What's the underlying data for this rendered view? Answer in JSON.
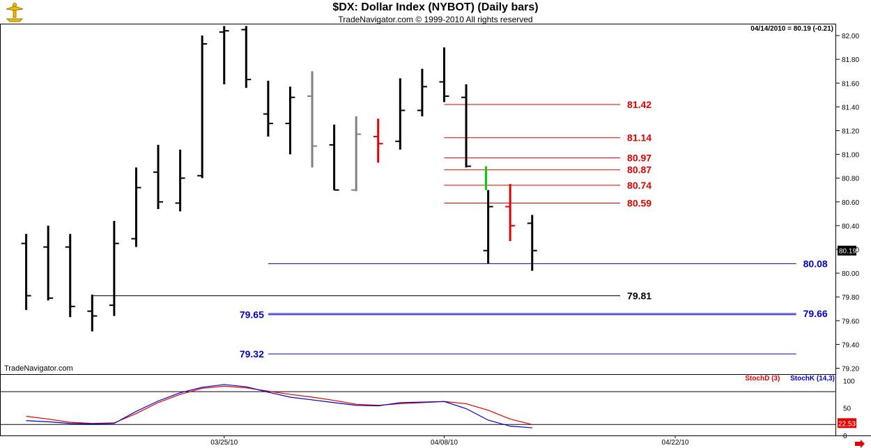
{
  "header": {
    "title": "$DX:  Dollar Index (NYBOT)  (Daily bars)",
    "subtitle": "TradeNavigator.com © 1999-2010 All rights reserved",
    "last_info": "04/14/2010 = 80.19 (-0.21)"
  },
  "watermark": "TradeNavigator.com",
  "colors": {
    "up_bar": "#000000",
    "down_bar": "#000000",
    "gray_bar": "#808080",
    "red_bar": "#e00000",
    "green_bar": "#00cc00",
    "red_level": "#e00000",
    "blue_level": "#0000cc",
    "black_level": "#000000"
  },
  "chart_data": [
    {
      "type": "ohlc",
      "title": "$DX:  Dollar Index (NYBOT)  (Daily bars)",
      "y_range": [
        79.15,
        82.1
      ],
      "y_ticks": [
        "82.00",
        "81.80",
        "81.60",
        "81.40",
        "81.20",
        "81.00",
        "80.80",
        "80.60",
        "80.40",
        "80.20",
        "80.00",
        "79.80",
        "79.60",
        "79.40",
        "79.20"
      ],
      "x_ticks": [
        "03/25/10",
        "04/08/10",
        "04/22/10"
      ],
      "x_tick_index": [
        9,
        19,
        29.5
      ],
      "x_index_range": [
        -1,
        36.5
      ],
      "current_price_label": "80.19",
      "bars": [
        {
          "d": 0,
          "o": 80.25,
          "h": 80.33,
          "l": 79.69,
          "c": 79.81,
          "color": "black"
        },
        {
          "d": 1,
          "o": 80.22,
          "h": 80.4,
          "l": 79.77,
          "c": 79.79,
          "color": "black"
        },
        {
          "d": 2,
          "o": 80.22,
          "h": 80.33,
          "l": 79.63,
          "c": 79.72,
          "color": "black"
        },
        {
          "d": 3,
          "o": 79.68,
          "h": 79.82,
          "l": 79.51,
          "c": 79.64,
          "color": "black"
        },
        {
          "d": 4,
          "o": 79.73,
          "h": 80.44,
          "l": 79.64,
          "c": 80.25,
          "color": "black"
        },
        {
          "d": 5,
          "o": 80.29,
          "h": 80.89,
          "l": 80.22,
          "c": 80.72,
          "color": "black"
        },
        {
          "d": 6,
          "o": 80.85,
          "h": 81.08,
          "l": 80.54,
          "c": 80.6,
          "color": "black"
        },
        {
          "d": 7,
          "o": 80.59,
          "h": 81.04,
          "l": 80.52,
          "c": 80.8,
          "color": "black"
        },
        {
          "d": 8,
          "o": 80.82,
          "h": 82.0,
          "l": 80.8,
          "c": 81.93,
          "color": "black"
        },
        {
          "d": 9,
          "o": 82.03,
          "h": 82.08,
          "l": 81.59,
          "c": 82.04,
          "color": "black"
        },
        {
          "d": 10,
          "o": 82.05,
          "h": 82.08,
          "l": 81.56,
          "c": 81.63,
          "color": "black"
        },
        {
          "d": 11,
          "o": 81.34,
          "h": 81.62,
          "l": 81.15,
          "c": 81.26,
          "color": "black"
        },
        {
          "d": 12,
          "o": 81.26,
          "h": 81.57,
          "l": 81.0,
          "c": 81.48,
          "color": "black"
        },
        {
          "d": 13,
          "o": 81.49,
          "h": 81.7,
          "l": 80.89,
          "c": 81.07,
          "color": "gray"
        },
        {
          "d": 14,
          "o": 81.08,
          "h": 81.25,
          "l": 80.7,
          "c": 80.7,
          "color": "black"
        },
        {
          "d": 15,
          "o": 80.7,
          "h": 81.32,
          "l": 80.69,
          "c": 81.17,
          "color": "gray"
        },
        {
          "d": 16,
          "o": 81.15,
          "h": 81.3,
          "l": 80.93,
          "c": 81.09,
          "color": "red"
        },
        {
          "d": 17,
          "o": 81.11,
          "h": 81.64,
          "l": 81.04,
          "c": 81.37,
          "color": "black"
        },
        {
          "d": 18,
          "o": 81.37,
          "h": 81.72,
          "l": 81.32,
          "c": 81.57,
          "color": "black"
        },
        {
          "d": 19,
          "o": 81.61,
          "h": 81.9,
          "l": 81.44,
          "c": 81.49,
          "color": "black"
        },
        {
          "d": 20,
          "o": 81.48,
          "h": 81.59,
          "l": 80.89,
          "c": 80.9,
          "color": "black"
        },
        {
          "d": 20.9,
          "o": 80.9,
          "h": 80.9,
          "l": 80.7,
          "c": 80.7,
          "color": "green"
        },
        {
          "d": 21,
          "o": 80.19,
          "h": 80.7,
          "l": 80.08,
          "c": 80.56,
          "color": "black"
        },
        {
          "d": 22,
          "o": 80.56,
          "h": 80.75,
          "l": 80.27,
          "c": 80.4,
          "color": "red"
        },
        {
          "d": 23,
          "o": 80.42,
          "h": 80.49,
          "l": 80.02,
          "c": 80.19,
          "color": "black"
        }
      ],
      "levels": [
        {
          "value": 81.42,
          "label": "81.42",
          "color": "red",
          "from": 19,
          "to": 27,
          "label_side": "right-mid"
        },
        {
          "value": 81.14,
          "label": "81.14",
          "color": "red",
          "from": 19,
          "to": 27,
          "label_side": "right-mid"
        },
        {
          "value": 80.97,
          "label": "80.97",
          "color": "red",
          "from": 19,
          "to": 27,
          "label_side": "right-mid"
        },
        {
          "value": 80.87,
          "label": "80.87",
          "color": "red",
          "from": 19,
          "to": 27,
          "label_side": "right-mid"
        },
        {
          "value": 80.74,
          "label": "80.74",
          "color": "red",
          "from": 19,
          "to": 27,
          "label_side": "right-mid"
        },
        {
          "value": 80.59,
          "label": "80.59",
          "color": "red",
          "from": 19,
          "to": 27,
          "label_side": "right-mid"
        },
        {
          "value": 80.08,
          "label": "80.08",
          "color": "blue",
          "from": 11,
          "to": 35,
          "label_side": "right-far"
        },
        {
          "value": 79.81,
          "label": "79.81",
          "color": "black",
          "from": 3,
          "to": 27,
          "label_side": "right-mid"
        },
        {
          "value": 79.65,
          "label": "79.65",
          "color": "blue",
          "from": 11,
          "to": 35,
          "label_side": "left"
        },
        {
          "value": 79.66,
          "label": "79.66",
          "color": "blue",
          "from": 11,
          "to": 35,
          "label_side": "right-far"
        },
        {
          "value": 79.32,
          "label": "79.32",
          "color": "blue",
          "from": 11,
          "to": 35,
          "label_side": "left"
        }
      ]
    },
    {
      "type": "line",
      "title": "",
      "legend": [
        "StochD (3)",
        "StochK (14,3)"
      ],
      "y_range": [
        0,
        112
      ],
      "y_ticks": [
        "100",
        "50",
        "0"
      ],
      "reference_lines": [
        80,
        20
      ],
      "current_labels": [
        "22.53"
      ],
      "series": [
        {
          "name": "StochD (3)",
          "color": "red",
          "x": [
            0,
            1,
            2,
            3,
            4,
            5,
            6,
            7,
            8,
            9,
            10,
            11,
            12,
            13,
            14,
            15,
            16,
            17,
            18,
            19,
            20,
            21,
            22,
            23
          ],
          "values": [
            35,
            30,
            24,
            22,
            23,
            40,
            60,
            75,
            86,
            90,
            87,
            81,
            75,
            70,
            64,
            57,
            55,
            58,
            60,
            62,
            58,
            46,
            30,
            20
          ]
        },
        {
          "name": "StochK (14,3)",
          "color": "blue",
          "x": [
            0,
            1,
            2,
            3,
            4,
            5,
            6,
            7,
            8,
            9,
            10,
            11,
            12,
            13,
            14,
            15,
            16,
            17,
            18,
            19,
            20,
            21,
            22,
            23
          ],
          "values": [
            27,
            25,
            22,
            21,
            22,
            44,
            63,
            78,
            88,
            93,
            89,
            79,
            70,
            65,
            60,
            55,
            54,
            60,
            61,
            62,
            49,
            28,
            17,
            14
          ]
        }
      ]
    }
  ]
}
